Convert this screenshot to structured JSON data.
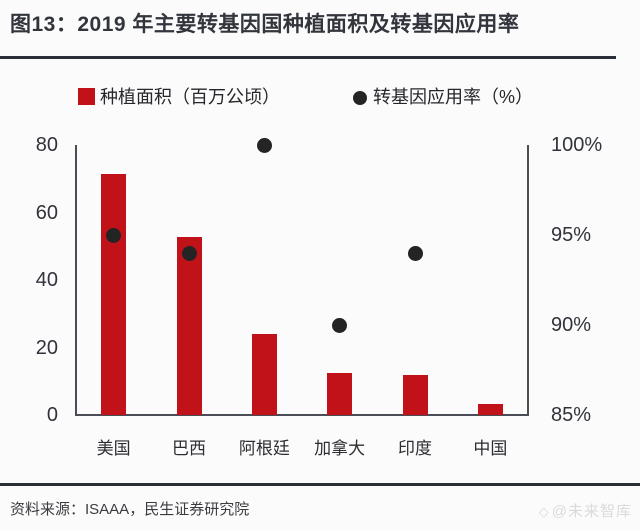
{
  "title": "图13：2019 年主要转基因国种植面积及转基因应用率",
  "legend": [
    {
      "label": "种植面积（百万公顷）",
      "type": "bar",
      "color": "#c1121a"
    },
    {
      "label": "转基因应用率（%）",
      "type": "dot",
      "color": "#242424"
    }
  ],
  "source": "资料来源：ISAAA，民生证券研究院",
  "watermark": {
    "icon": "logo-icon",
    "icon_glyph": "◇",
    "text": "@未来智库"
  },
  "chart_data": {
    "type": "bar",
    "subtype": "bar-with-scatter-dual-axis",
    "title": "2019 年主要转基因国种植面积及转基因应用率",
    "categories": [
      "美国",
      "巴西",
      "阿根廷",
      "加拿大",
      "印度",
      "中国"
    ],
    "series": [
      {
        "name": "种植面积（百万公顷）",
        "type": "bar",
        "axis": "left",
        "color": "#c1121a",
        "values": [
          71.5,
          52.8,
          24.0,
          12.5,
          11.9,
          3.2
        ]
      },
      {
        "name": "转基因应用率（%）",
        "type": "scatter",
        "axis": "right",
        "color": "#242424",
        "values": [
          95,
          94,
          100,
          90,
          94,
          null
        ]
      }
    ],
    "left_axis": {
      "label": "",
      "range": [
        0,
        80
      ],
      "tick_values": [
        0,
        20,
        40,
        60,
        80
      ],
      "tick_labels": [
        "0",
        "20",
        "40",
        "60",
        "80"
      ]
    },
    "right_axis": {
      "label": "",
      "range": [
        85,
        100
      ],
      "tick_values": [
        85,
        90,
        95,
        100
      ],
      "tick_labels": [
        "85%",
        "90%",
        "95%",
        "100%"
      ]
    },
    "grid": false,
    "legend_position": "top"
  }
}
